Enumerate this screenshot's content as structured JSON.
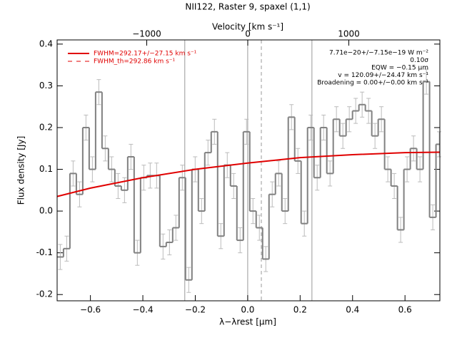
{
  "chart_data": {
    "type": "step",
    "title": "NII122, Raster 9, spaxel (1,1)",
    "xlabel": "λ−λrest [μm]",
    "ylabel": "Flux density [Jy]",
    "x2label": "Velocity [km s⁻¹]",
    "xlim": [
      -0.727,
      0.733
    ],
    "ylim": [
      -0.215,
      0.41
    ],
    "x2lim": [
      -1887,
      1901
    ],
    "xticks": [
      {
        "value": -0.6,
        "label": "−0.6"
      },
      {
        "value": -0.4,
        "label": "−0.4"
      },
      {
        "value": -0.2,
        "label": "−0.2"
      },
      {
        "value": 0,
        "label": "0.0"
      },
      0.2,
      0.4,
      0.6
    ],
    "yticks": [
      -0.2,
      -0.1,
      {
        "value": 0,
        "label": "0.0"
      },
      0.1,
      0.2,
      0.3,
      0.4
    ],
    "x2ticks": [
      {
        "value": -1000,
        "label": "−1000"
      },
      0,
      1000
    ],
    "x": [
      -0.715,
      -0.6905,
      -0.666,
      -0.6415,
      -0.617,
      -0.5925,
      -0.568,
      -0.5435,
      -0.519,
      -0.4945,
      -0.47,
      -0.4455,
      -0.421,
      -0.3965,
      -0.372,
      -0.3475,
      -0.323,
      -0.2985,
      -0.274,
      -0.2495,
      -0.225,
      -0.2005,
      -0.176,
      -0.1515,
      -0.127,
      -0.1025,
      -0.078,
      -0.0535,
      -0.029,
      -0.0045,
      0.02,
      0.0445,
      0.069,
      0.0935,
      0.118,
      0.1425,
      0.167,
      0.1915,
      0.216,
      0.2405,
      0.265,
      0.2895,
      0.314,
      0.3385,
      0.363,
      0.3875,
      0.412,
      0.4365,
      0.461,
      0.4855,
      0.51,
      0.5345,
      0.559,
      0.5835,
      0.608,
      0.6325,
      0.657,
      0.6815,
      0.706,
      0.7305
    ],
    "values": [
      -0.11,
      -0.09,
      0.09,
      0.04,
      0.2,
      0.1,
      0.285,
      0.15,
      0.1,
      0.06,
      0.05,
      0.13,
      -0.1,
      0.08,
      0.085,
      0.085,
      -0.085,
      -0.075,
      -0.04,
      0.08,
      -0.165,
      0.1,
      0.0,
      0.14,
      0.19,
      -0.06,
      0.11,
      0.06,
      -0.07,
      0.19,
      0.0,
      -0.04,
      -0.115,
      0.04,
      0.09,
      0.0,
      0.225,
      0.12,
      -0.03,
      0.2,
      0.08,
      0.2,
      0.09,
      0.22,
      0.18,
      0.22,
      0.24,
      0.255,
      0.24,
      0.18,
      0.22,
      0.1,
      0.06,
      -0.045,
      0.1,
      0.15,
      0.1,
      0.31,
      -0.015,
      0.16
    ],
    "errors": [
      0.03,
      0.03,
      0.03,
      0.03,
      0.03,
      0.03,
      0.03,
      0.03,
      0.03,
      0.03,
      0.03,
      0.03,
      0.03,
      0.03,
      0.03,
      0.03,
      0.03,
      0.03,
      0.03,
      0.03,
      0.03,
      0.03,
      0.03,
      0.03,
      0.03,
      0.03,
      0.03,
      0.03,
      0.03,
      0.03,
      0.03,
      0.03,
      0.03,
      0.03,
      0.03,
      0.03,
      0.03,
      0.03,
      0.03,
      0.03,
      0.03,
      0.03,
      0.03,
      0.03,
      0.03,
      0.03,
      0.03,
      0.03,
      0.03,
      0.03,
      0.03,
      0.03,
      0.03,
      0.03,
      0.03,
      0.03,
      0.03,
      0.03,
      0.03,
      0.03
    ],
    "color": "#808080",
    "fit": {
      "name": "FWHM=292.17+/−27.15 km s⁻¹",
      "color": "#e00000",
      "x": [
        -0.727,
        -0.6,
        -0.4,
        -0.2,
        0,
        0.2,
        0.4,
        0.6,
        0.733
      ],
      "values": [
        0.035,
        0.055,
        0.08,
        0.1,
        0.115,
        0.128,
        0.135,
        0.14,
        0.141
      ]
    },
    "fit_th_name": "FWHM_th=292.86 km s⁻¹",
    "vlines": [
      -0.24,
      0,
      0.245
    ],
    "dashed_vlines": [
      0.052
    ],
    "annotations": [
      "7.71e−20+/−7.15e−19 W m⁻²",
      "0.10σ",
      "EQW = −0.15 μm",
      "v = 120.09+/−24.47 km s⁻¹",
      "Broadening = 0.00+/−0.00 km s⁻¹"
    ]
  }
}
